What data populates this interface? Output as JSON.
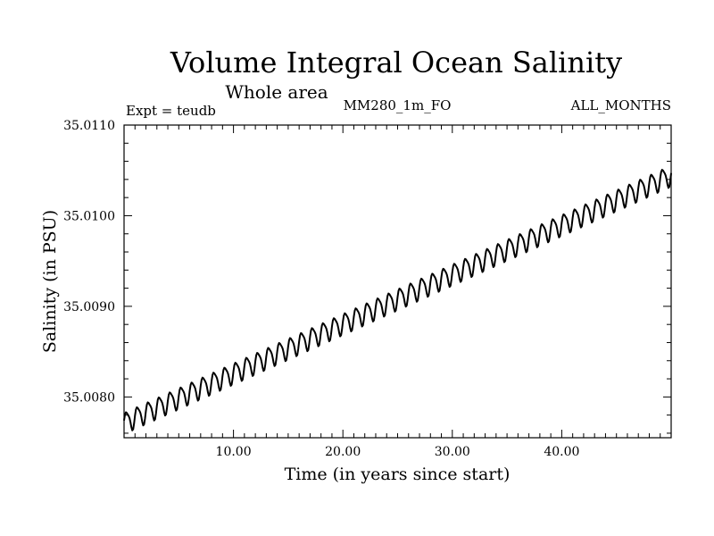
{
  "chart_data": {
    "type": "line",
    "title": "Volume Integral Ocean Salinity",
    "subtitle": "Whole area",
    "expt_label": "Expt = teudb",
    "run_label": "MM280_1m_FO",
    "months_label": "ALL_MONTHS",
    "xlabel": "Time (in years since start)",
    "ylabel": "Salinity (in PSU)",
    "xlim": [
      0,
      50
    ],
    "ylim": [
      35.00755,
      35.011
    ],
    "xticks": [
      10,
      20,
      30,
      40
    ],
    "xtick_labels": [
      "10.00",
      "20.00",
      "30.00",
      "40.00"
    ],
    "yticks": [
      35.008,
      35.009,
      35.01,
      35.011
    ],
    "ytick_labels": [
      "35.0080",
      "35.0090",
      "35.0100",
      "35.0110"
    ],
    "series": [
      {
        "name": "Salinity",
        "color": "#000000",
        "trend_start": 35.00772,
        "trend_end": 35.01045,
        "seasonal_amplitude": 0.00011,
        "period_years": 1.0,
        "points_per_year": 12,
        "duration_years": 50
      }
    ]
  }
}
